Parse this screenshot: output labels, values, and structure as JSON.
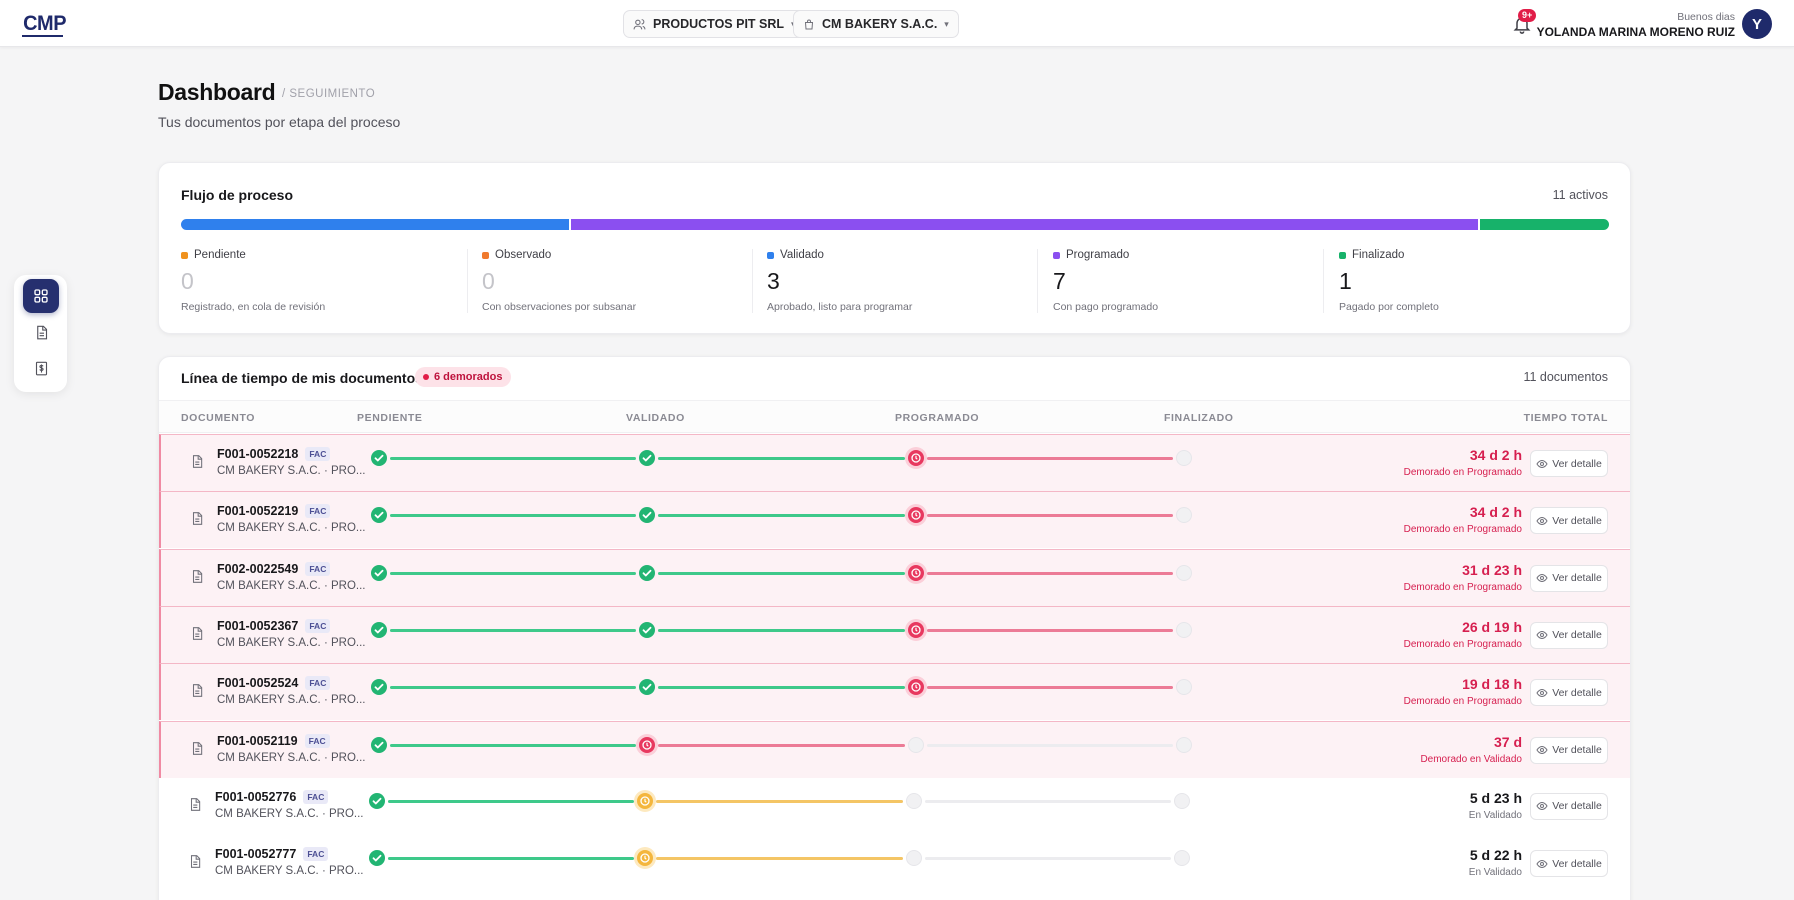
{
  "app": {
    "logo_text": "CMP",
    "company_selector": "PRODUCTOS PIT SRL",
    "client_selector": "CM BAKERY S.A.C.",
    "notifications_badge": "9+",
    "greeting": "Buenos dias",
    "user_name": "YOLANDA MARINA MORENO RUIZ",
    "avatar_initial": "Y"
  },
  "header": {
    "title": "Dashboard",
    "breadcrumb": "/ SEGUIMIENTO",
    "subtitle": "Tus documentos por etapa del proceso"
  },
  "flow": {
    "title": "Flujo de proceso",
    "active_count": "11 activos",
    "bar_shares": {
      "validado": 3,
      "programado": 7,
      "finalizado": 1
    },
    "colors": {
      "pendiente": "#f0921d",
      "observado": "#f07a2e",
      "validado": "#2f80ed",
      "programado": "#8b4ff0",
      "finalizado": "#17b26a"
    },
    "stages": [
      {
        "label": "Pendiente",
        "count": "0",
        "desc": "Registrado, en cola de revisión"
      },
      {
        "label": "Observado",
        "count": "0",
        "desc": "Con observaciones por subsanar"
      },
      {
        "label": "Validado",
        "count": "3",
        "desc": "Aprobado, listo para programar"
      },
      {
        "label": "Programado",
        "count": "7",
        "desc": "Con pago programado"
      },
      {
        "label": "Finalizado",
        "count": "1",
        "desc": "Pagado por completo"
      }
    ]
  },
  "timeline": {
    "title": "Línea de tiempo de mis documentos",
    "delayed_badge": "6 demorados",
    "total": "11 documentos",
    "columns": [
      "DOCUMENTO",
      "PENDIENTE",
      "VALIDADO",
      "PROGRAMADO",
      "FINALIZADO",
      "TIEMPO TOTAL"
    ],
    "detail_label": "Ver detalle",
    "rows": [
      {
        "id": "F001-0052218",
        "tag": "FAC",
        "client": "CM BAKERY S.A.C. · PRO...",
        "time": "34 d 2 h",
        "status": "Demorado en Programado"
      },
      {
        "id": "F001-0052219",
        "tag": "FAC",
        "client": "CM BAKERY S.A.C. · PRO...",
        "time": "34 d 2 h",
        "status": "Demorado en Programado"
      },
      {
        "id": "F002-0022549",
        "tag": "FAC",
        "client": "CM BAKERY S.A.C. · PRO...",
        "time": "31 d 23 h",
        "status": "Demorado en Programado"
      },
      {
        "id": "F001-0052367",
        "tag": "FAC",
        "client": "CM BAKERY S.A.C. · PRO...",
        "time": "26 d 19 h",
        "status": "Demorado en Programado"
      },
      {
        "id": "F001-0052524",
        "tag": "FAC",
        "client": "CM BAKERY S.A.C. · PRO...",
        "time": "19 d 18 h",
        "status": "Demorado en Programado"
      },
      {
        "id": "F001-0052119",
        "tag": "FAC",
        "client": "CM BAKERY S.A.C. · PRO...",
        "time": "37 d",
        "status": "Demorado en Validado"
      },
      {
        "id": "F001-0052776",
        "tag": "FAC",
        "client": "CM BAKERY S.A.C. · PRO...",
        "time": "5 d 23 h",
        "status": "En Validado"
      },
      {
        "id": "F001-0052777",
        "tag": "FAC",
        "client": "CM BAKERY S.A.C. · PRO...",
        "time": "5 d 22 h",
        "status": "En Validado"
      }
    ]
  }
}
